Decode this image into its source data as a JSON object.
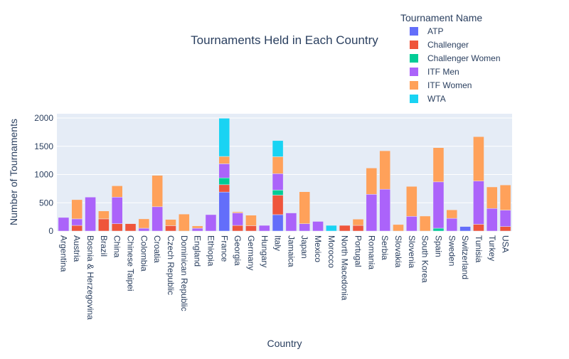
{
  "chart_data": {
    "type": "bar",
    "stacked": true,
    "title": "Tournaments Held in Each Country",
    "xlabel": "Country",
    "ylabel": "Number of Tournaments",
    "ylim": [
      0,
      2100
    ],
    "yticks": [
      0,
      500,
      1000,
      1500,
      2000
    ],
    "grid": true,
    "legend": {
      "title": "Tournament Name",
      "placement": "top-right"
    },
    "categories": [
      "Argentina",
      "Austria",
      "Bosnia & Herzegovina",
      "Brazil",
      "China",
      "Chinese Taipei",
      "Colombia",
      "Croatia",
      "Czech Republic",
      "Dominican Republic",
      "England",
      "Ethiopia",
      "France",
      "Georgia",
      "Germany",
      "Hungary",
      "Italy",
      "Jamaica",
      "Japan",
      "Mexico",
      "Morocco",
      "North Macedonia",
      "Portugal",
      "Romania",
      "Serbia",
      "Slovakia",
      "Slovenia",
      "South Korea",
      "Spain",
      "Sweden",
      "Switzerland",
      "Tunisia",
      "Turkey",
      "USA"
    ],
    "series": [
      {
        "name": "ATP",
        "color": "#636efa",
        "values": [
          0,
          0,
          0,
          0,
          0,
          0,
          0,
          0,
          0,
          0,
          0,
          0,
          690,
          0,
          0,
          0,
          290,
          0,
          0,
          0,
          0,
          0,
          0,
          0,
          0,
          0,
          0,
          0,
          0,
          0,
          80,
          0,
          0,
          0
        ]
      },
      {
        "name": "Challenger",
        "color": "#EF553B",
        "values": [
          0,
          100,
          0,
          215,
          130,
          130,
          0,
          0,
          95,
          0,
          0,
          0,
          130,
          100,
          95,
          0,
          345,
          0,
          0,
          0,
          0,
          100,
          100,
          0,
          0,
          0,
          0,
          0,
          0,
          0,
          0,
          120,
          0,
          80
        ]
      },
      {
        "name": "Challenger Women",
        "color": "#00cc96",
        "values": [
          0,
          0,
          0,
          0,
          0,
          0,
          0,
          0,
          0,
          0,
          0,
          0,
          120,
          0,
          0,
          0,
          90,
          0,
          0,
          0,
          0,
          0,
          0,
          0,
          0,
          0,
          0,
          0,
          50,
          0,
          0,
          0,
          0,
          0
        ]
      },
      {
        "name": "ITF Men",
        "color": "#ab63fa",
        "values": [
          240,
          115,
          600,
          0,
          470,
          0,
          50,
          430,
          0,
          0,
          50,
          290,
          250,
          220,
          0,
          100,
          290,
          320,
          130,
          170,
          0,
          0,
          0,
          650,
          740,
          0,
          260,
          0,
          820,
          225,
          0,
          765,
          400,
          290
        ]
      },
      {
        "name": "ITF Women",
        "color": "#FFA15A",
        "values": [
          0,
          340,
          0,
          140,
          200,
          0,
          165,
          555,
          110,
          300,
          40,
          0,
          130,
          20,
          185,
          0,
          300,
          0,
          565,
          0,
          0,
          0,
          110,
          465,
          680,
          115,
          530,
          265,
          605,
          150,
          0,
          785,
          380,
          445
        ]
      },
      {
        "name": "WTA",
        "color": "#19d3f3",
        "values": [
          0,
          0,
          0,
          0,
          0,
          0,
          0,
          0,
          0,
          0,
          0,
          0,
          675,
          0,
          0,
          0,
          285,
          0,
          0,
          0,
          100,
          0,
          0,
          0,
          0,
          0,
          0,
          0,
          0,
          0,
          0,
          0,
          0,
          0
        ]
      }
    ]
  }
}
